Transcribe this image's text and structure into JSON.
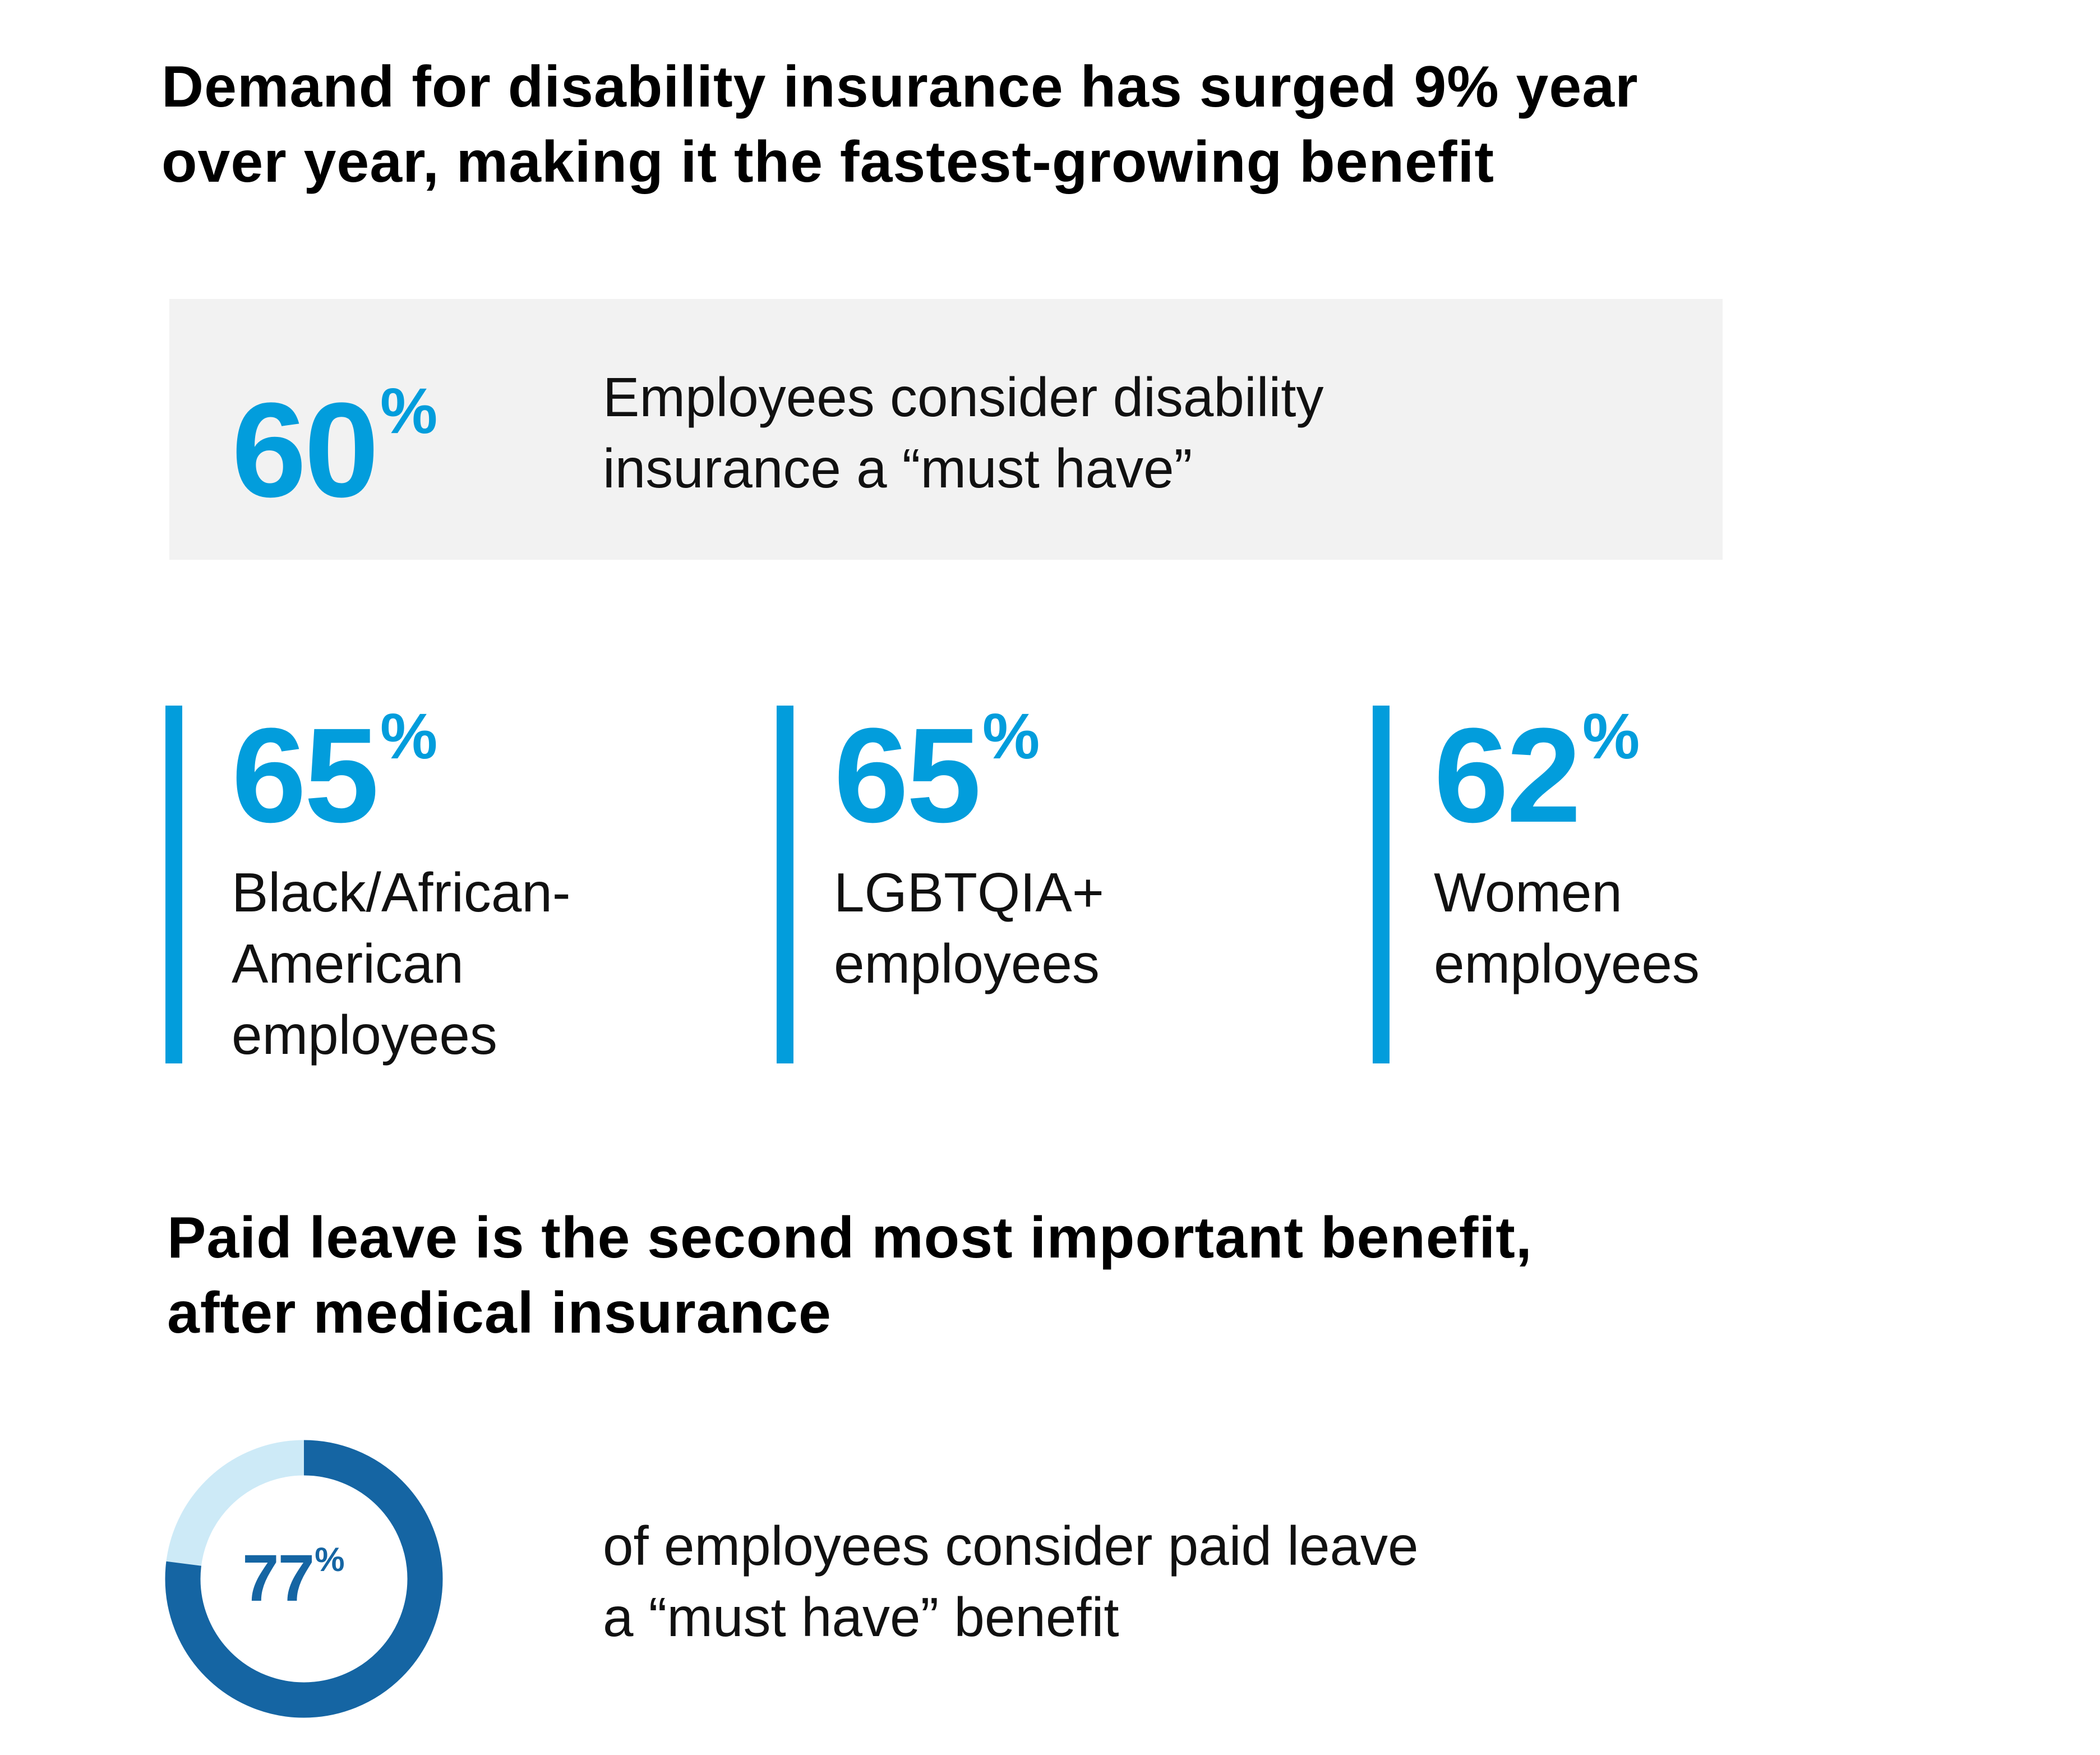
{
  "section1": {
    "title_lines": [
      "Demand for disability insurance has surged 9% year",
      "over year, making it the fastest-growing benefit"
    ],
    "highlight": {
      "value": "60",
      "unit": "%",
      "text_lines": [
        "Employees consider disability",
        "insurance a “must have”"
      ]
    },
    "stats": [
      {
        "value": "65",
        "unit": "%",
        "label_lines": [
          "Black/African-",
          "American",
          "employees"
        ]
      },
      {
        "value": "65",
        "unit": "%",
        "label_lines": [
          "LGBTQIA+",
          "employees"
        ]
      },
      {
        "value": "62",
        "unit": "%",
        "label_lines": [
          "Women",
          "employees"
        ]
      }
    ]
  },
  "section2": {
    "title_lines": [
      "Paid leave is the second most important benefit,",
      "after medical insurance"
    ],
    "donut": {
      "value": "77",
      "unit": "%",
      "percent": 77
    },
    "text_lines": [
      "of employees consider paid leave",
      "a “must have” benefit"
    ]
  },
  "colors": {
    "accent": "#029ddc",
    "donut_fill": "#1565a3",
    "donut_track": "#cdeaf7",
    "box_bg": "#f2f2f2"
  }
}
